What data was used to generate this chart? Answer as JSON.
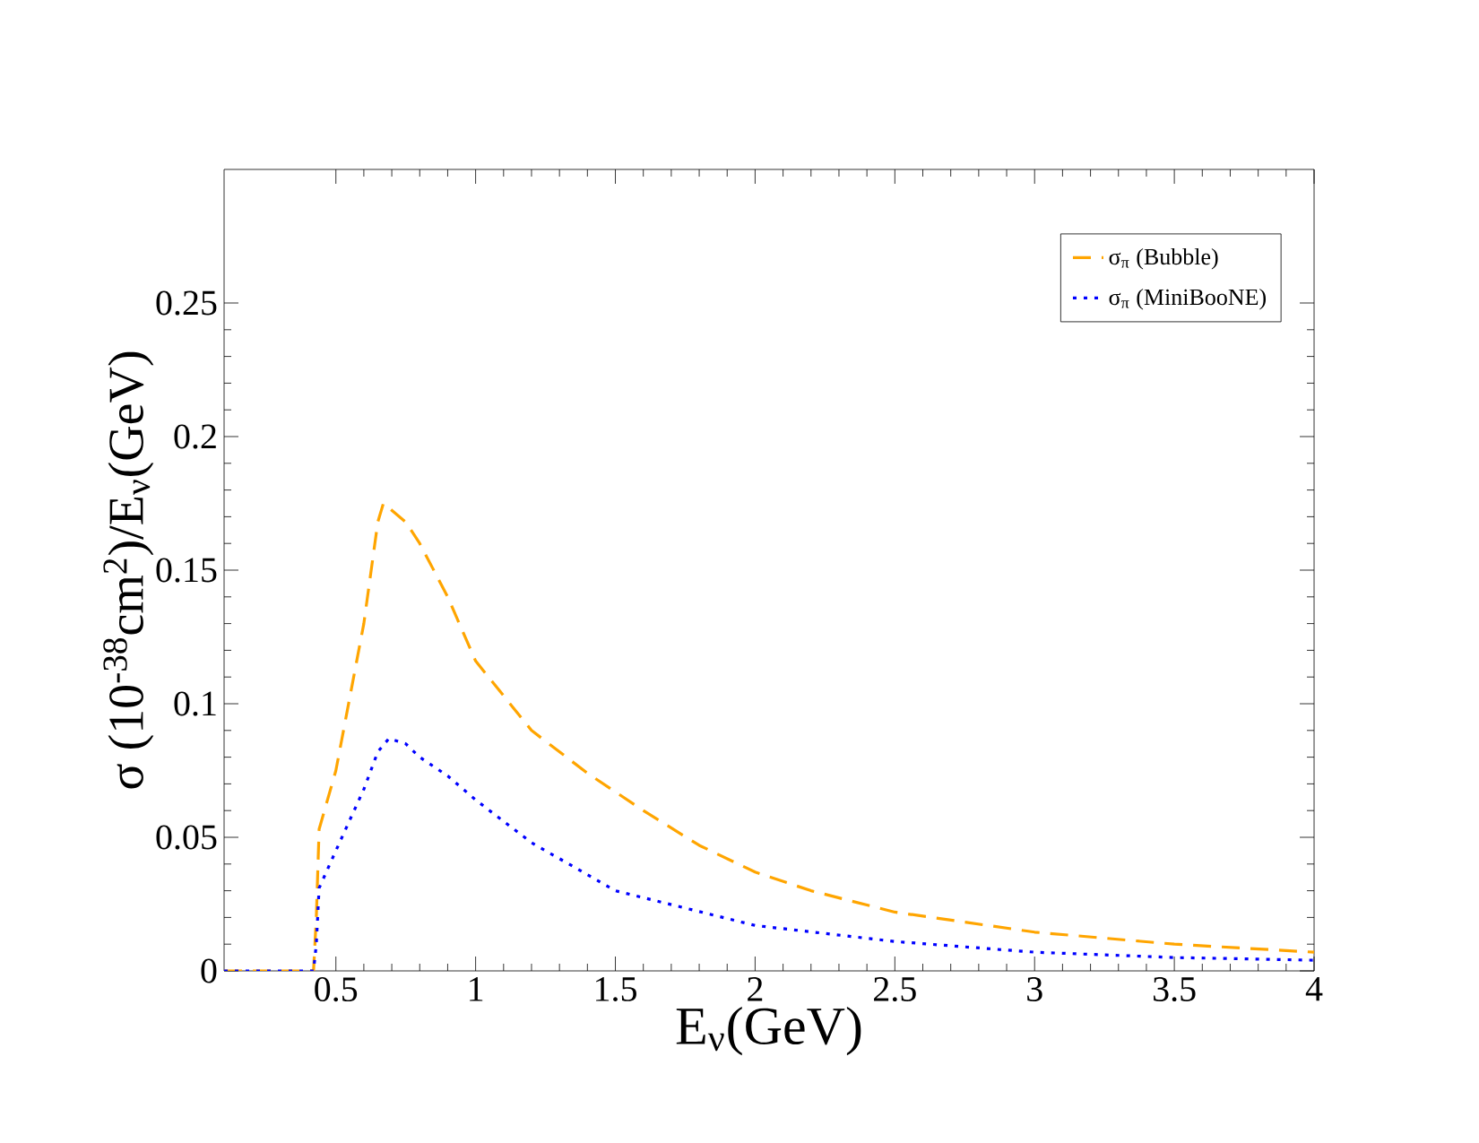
{
  "chart_data": {
    "type": "line",
    "xlabel": "E$_{ν}$(GeV)",
    "ylabel": "σ  (10$^{-38}$cm$^{2}$)/E$_{ν}$(GeV)",
    "xlim": [
      0.1,
      4
    ],
    "ylim": [
      0,
      0.3
    ],
    "xticks": [
      0.5,
      1,
      1.5,
      2,
      2.5,
      3,
      3.5,
      4
    ],
    "yticks": [
      0,
      0.05,
      0.1,
      0.15,
      0.2,
      0.25
    ],
    "legend": "top right",
    "grid": false,
    "series": [
      {
        "name": "σ$_{π}$ (Bubble)",
        "color": "#ffa500",
        "line_style": "dashed",
        "x": [
          0.1,
          0.42,
          0.43,
          0.44,
          0.5,
          0.6,
          0.65,
          0.67,
          0.75,
          0.8,
          0.9,
          1.0,
          1.2,
          1.4,
          1.5,
          1.6,
          1.8,
          2.0,
          2.2,
          2.5,
          3.0,
          3.5,
          4.0
        ],
        "values": [
          0,
          0,
          0.02,
          0.053,
          0.075,
          0.13,
          0.168,
          0.175,
          0.168,
          0.16,
          0.14,
          0.116,
          0.09,
          0.074,
          0.067,
          0.06,
          0.047,
          0.037,
          0.03,
          0.022,
          0.0145,
          0.01,
          0.007
        ]
      },
      {
        "name": "σ$_{π}$ (MiniBooNE)",
        "color": "#0000ff",
        "line_style": "dotted",
        "x": [
          0.1,
          0.42,
          0.43,
          0.44,
          0.5,
          0.6,
          0.65,
          0.69,
          0.75,
          0.8,
          0.9,
          1.0,
          1.2,
          1.5,
          2.0,
          2.5,
          3.0,
          3.5,
          4.0
        ],
        "values": [
          0,
          0,
          0.01,
          0.031,
          0.045,
          0.068,
          0.082,
          0.087,
          0.085,
          0.08,
          0.073,
          0.064,
          0.048,
          0.03,
          0.017,
          0.011,
          0.007,
          0.005,
          0.004
        ]
      }
    ]
  }
}
